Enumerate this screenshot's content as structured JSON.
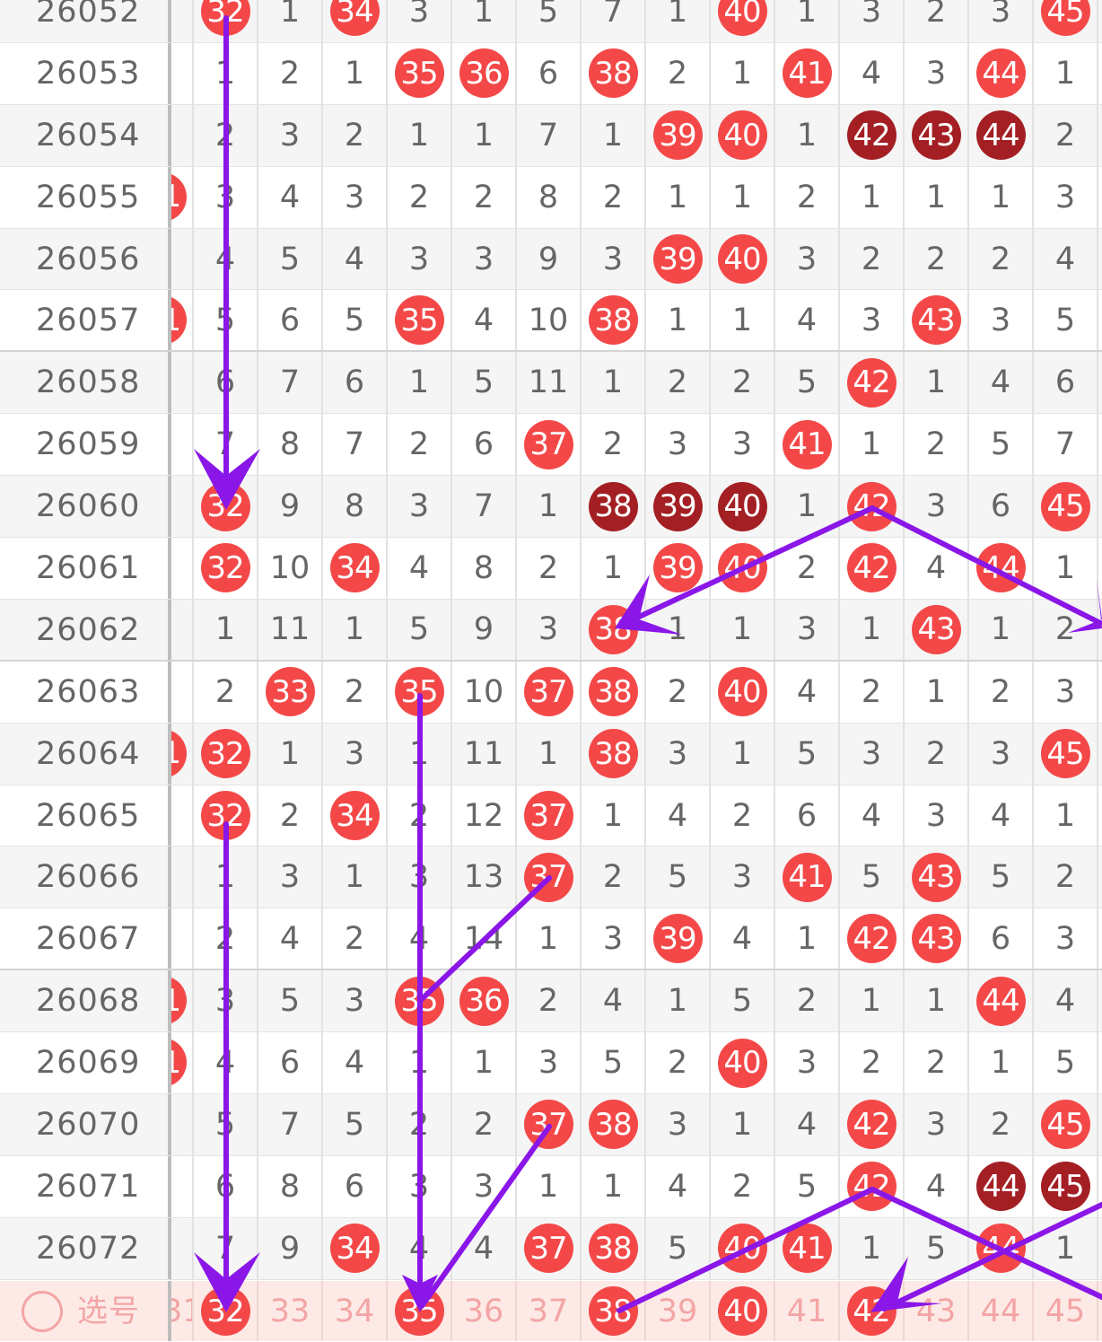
{
  "columns": [
    32,
    33,
    34,
    35,
    36,
    37,
    38,
    39,
    40,
    41,
    42,
    43,
    44,
    45
  ],
  "partial_column": 31,
  "colors": {
    "hit": "#f44848",
    "repeat": "#a31f23",
    "arrow": "#8a16e8",
    "footer_text": "#f3a5a5"
  },
  "rows": [
    {
      "issue": "26052",
      "cells": [
        32,
        1,
        34,
        3,
        1,
        5,
        7,
        1,
        40,
        1,
        3,
        2,
        3,
        45
      ],
      "hits": [
        32,
        34,
        40,
        45
      ],
      "repeat": [],
      "partial_hit": false
    },
    {
      "issue": "26053",
      "cells": [
        1,
        2,
        1,
        35,
        36,
        6,
        38,
        2,
        1,
        41,
        4,
        3,
        44,
        1
      ],
      "hits": [
        35,
        36,
        38,
        41,
        44
      ],
      "repeat": [],
      "partial_hit": false
    },
    {
      "issue": "26054",
      "cells": [
        2,
        3,
        2,
        1,
        1,
        7,
        1,
        39,
        40,
        1,
        42,
        43,
        44,
        2
      ],
      "hits": [
        39,
        40
      ],
      "repeat": [
        42,
        43,
        44
      ],
      "partial_hit": false
    },
    {
      "issue": "26055",
      "cells": [
        3,
        4,
        3,
        2,
        2,
        8,
        2,
        1,
        1,
        2,
        1,
        1,
        1,
        3
      ],
      "hits": [],
      "repeat": [],
      "partial_hit": true
    },
    {
      "issue": "26056",
      "cells": [
        4,
        5,
        4,
        3,
        3,
        9,
        3,
        39,
        40,
        3,
        2,
        2,
        2,
        4
      ],
      "hits": [
        39,
        40
      ],
      "repeat": [],
      "partial_hit": false
    },
    {
      "issue": "26057",
      "cells": [
        5,
        6,
        5,
        35,
        4,
        10,
        38,
        1,
        1,
        4,
        3,
        43,
        3,
        5
      ],
      "hits": [
        35,
        38,
        43
      ],
      "repeat": [],
      "partial_hit": true
    },
    {
      "issue": "26058",
      "cells": [
        6,
        7,
        6,
        1,
        5,
        11,
        1,
        2,
        2,
        5,
        42,
        1,
        4,
        6
      ],
      "hits": [
        42
      ],
      "repeat": [],
      "partial_hit": false
    },
    {
      "issue": "26059",
      "cells": [
        7,
        8,
        7,
        2,
        6,
        37,
        2,
        3,
        3,
        41,
        1,
        2,
        5,
        7
      ],
      "hits": [
        37,
        41
      ],
      "repeat": [],
      "partial_hit": false
    },
    {
      "issue": "26060",
      "cells": [
        32,
        9,
        8,
        3,
        7,
        1,
        38,
        39,
        40,
        1,
        42,
        3,
        6,
        45
      ],
      "hits": [
        32,
        42,
        45
      ],
      "repeat": [
        38,
        39,
        40
      ],
      "partial_hit": false
    },
    {
      "issue": "26061",
      "cells": [
        32,
        10,
        34,
        4,
        8,
        2,
        1,
        39,
        40,
        2,
        42,
        4,
        44,
        1
      ],
      "hits": [
        32,
        34,
        39,
        40,
        42,
        44
      ],
      "repeat": [],
      "partial_hit": false
    },
    {
      "issue": "26062",
      "cells": [
        1,
        11,
        1,
        5,
        9,
        3,
        38,
        1,
        1,
        3,
        1,
        43,
        1,
        2
      ],
      "hits": [
        38,
        43
      ],
      "repeat": [],
      "partial_hit": false
    },
    {
      "issue": "26063",
      "cells": [
        2,
        33,
        2,
        35,
        10,
        37,
        38,
        2,
        40,
        4,
        2,
        1,
        2,
        3
      ],
      "hits": [
        33,
        35,
        37,
        38,
        40
      ],
      "repeat": [],
      "partial_hit": false
    },
    {
      "issue": "26064",
      "cells": [
        32,
        1,
        3,
        1,
        11,
        1,
        38,
        3,
        1,
        5,
        3,
        2,
        3,
        45
      ],
      "hits": [
        32,
        38,
        45
      ],
      "repeat": [],
      "partial_hit": true
    },
    {
      "issue": "26065",
      "cells": [
        32,
        2,
        34,
        2,
        12,
        37,
        1,
        4,
        2,
        6,
        4,
        3,
        4,
        1
      ],
      "hits": [
        32,
        34,
        37
      ],
      "repeat": [],
      "partial_hit": false
    },
    {
      "issue": "26066",
      "cells": [
        1,
        3,
        1,
        3,
        13,
        37,
        2,
        5,
        3,
        41,
        5,
        43,
        5,
        2
      ],
      "hits": [
        37,
        41,
        43
      ],
      "repeat": [],
      "partial_hit": false
    },
    {
      "issue": "26067",
      "cells": [
        2,
        4,
        2,
        4,
        14,
        1,
        3,
        39,
        4,
        1,
        42,
        43,
        6,
        3
      ],
      "hits": [
        39,
        42,
        43
      ],
      "repeat": [],
      "partial_hit": false
    },
    {
      "issue": "26068",
      "cells": [
        3,
        5,
        3,
        35,
        36,
        2,
        4,
        1,
        5,
        2,
        1,
        1,
        44,
        4
      ],
      "hits": [
        35,
        36,
        44
      ],
      "repeat": [],
      "partial_hit": true
    },
    {
      "issue": "26069",
      "cells": [
        4,
        6,
        4,
        1,
        1,
        3,
        5,
        2,
        40,
        3,
        2,
        2,
        1,
        5
      ],
      "hits": [
        40
      ],
      "repeat": [],
      "partial_hit": true
    },
    {
      "issue": "26070",
      "cells": [
        5,
        7,
        5,
        2,
        2,
        37,
        38,
        3,
        1,
        4,
        42,
        3,
        2,
        45
      ],
      "hits": [
        37,
        38,
        42,
        45
      ],
      "repeat": [],
      "partial_hit": false
    },
    {
      "issue": "26071",
      "cells": [
        6,
        8,
        6,
        3,
        3,
        1,
        1,
        4,
        2,
        5,
        42,
        4,
        44,
        45
      ],
      "hits": [
        42
      ],
      "repeat": [
        44,
        45
      ],
      "partial_hit": false
    },
    {
      "issue": "26072",
      "cells": [
        7,
        9,
        34,
        4,
        4,
        37,
        38,
        5,
        40,
        41,
        1,
        5,
        44,
        1
      ],
      "hits": [
        34,
        37,
        38,
        40,
        41,
        44
      ],
      "repeat": [],
      "partial_hit": false
    }
  ],
  "footer": {
    "label": "选号",
    "partial_text": "31",
    "numbers": [
      32,
      33,
      34,
      35,
      36,
      37,
      38,
      39,
      40,
      41,
      42,
      43,
      44,
      45
    ],
    "selected": [
      32,
      35,
      38,
      40,
      42
    ]
  }
}
